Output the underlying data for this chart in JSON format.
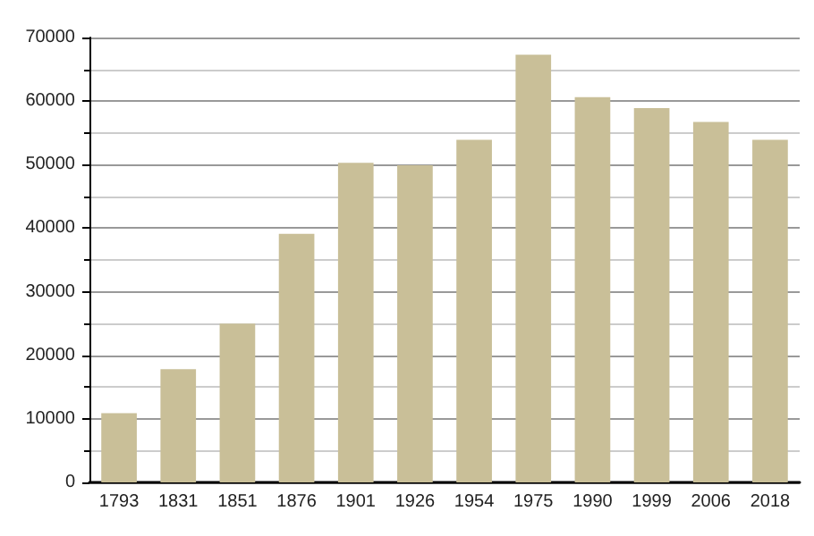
{
  "chart_data": {
    "type": "bar",
    "categories": [
      "1793",
      "1831",
      "1851",
      "1876",
      "1901",
      "1926",
      "1954",
      "1975",
      "1990",
      "1999",
      "2006",
      "2018"
    ],
    "values": [
      10900,
      17800,
      25000,
      39100,
      50300,
      49900,
      53900,
      67300,
      60600,
      58900,
      56700,
      53900
    ],
    "color": "#c9bf98",
    "ylim": [
      0,
      70000
    ],
    "yticks": [
      0,
      10000,
      20000,
      30000,
      40000,
      50000,
      60000,
      70000
    ],
    "grid": "y"
  }
}
